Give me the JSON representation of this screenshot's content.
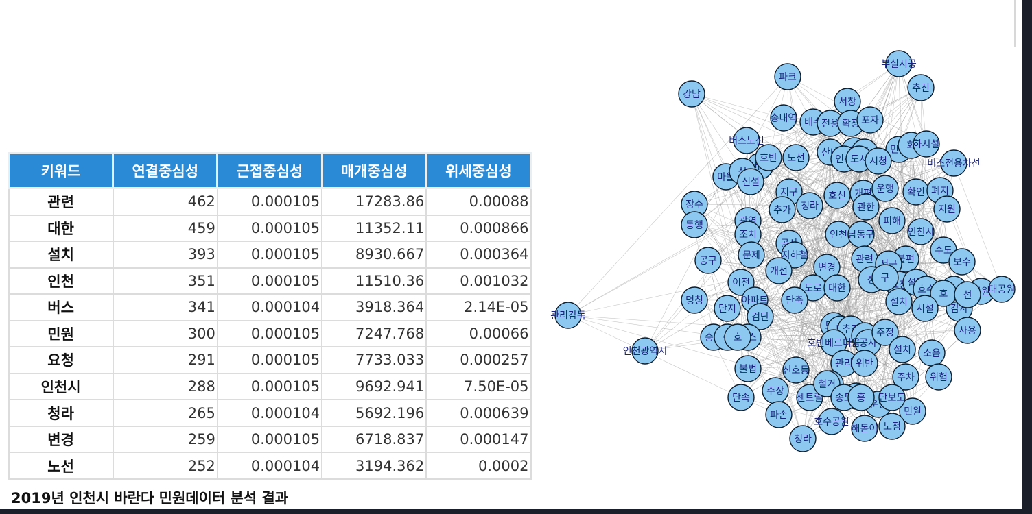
{
  "table": {
    "headers": [
      "키워드",
      "연결중심성",
      "근접중심성",
      "매개중심성",
      "위세중심성"
    ],
    "rows": [
      [
        "관련",
        "462",
        "0.000105",
        "17283.86",
        "0.00088"
      ],
      [
        "대한",
        "459",
        "0.000105",
        "11352.11",
        "0.000866"
      ],
      [
        "설치",
        "393",
        "0.000105",
        "8930.667",
        "0.000364"
      ],
      [
        "인천",
        "351",
        "0.000105",
        "11510.36",
        "0.001032"
      ],
      [
        "버스",
        "341",
        "0.000104",
        "3918.364",
        "2.14E-05"
      ],
      [
        "민원",
        "300",
        "0.000105",
        "7247.768",
        "0.00066"
      ],
      [
        "요청",
        "291",
        "0.000105",
        "7733.033",
        "0.000257"
      ],
      [
        "인천시",
        "288",
        "0.000105",
        "9692.941",
        "7.50E-05"
      ],
      [
        "청라",
        "265",
        "0.000104",
        "5692.196",
        "0.000639"
      ],
      [
        "변경",
        "259",
        "0.000105",
        "6718.837",
        "0.000147"
      ],
      [
        "노선",
        "252",
        "0.000104",
        "3194.362",
        "0.0002"
      ]
    ]
  },
  "caption": "2019년 인천시 바란다 민원데이터 분석 결과",
  "network": {
    "node_color": "#8cc8f0",
    "edge_color": "#9a9a9a",
    "labels": [
      "부실시공",
      "파크",
      "추진",
      "강남",
      "서창",
      "송내역",
      "배수",
      "전용",
      "확장",
      "포자",
      "버스노선",
      "민원",
      "화",
      "하시설",
      "산내",
      "변",
      "정",
      "노선",
      "인천",
      "도시",
      "시청",
      "마을",
      "버스",
      "호반",
      "신",
      "신설",
      "버스전용차선",
      "지구",
      "호선",
      "개편",
      "운행",
      "확인",
      "폐지",
      "장수",
      "통행",
      "추가",
      "청라",
      "관한",
      "피해",
      "지원",
      "광역",
      "조치",
      "인천",
      "남동구",
      "인천시",
      "공구",
      "문제",
      "공사",
      "지하철",
      "관련",
      "불편",
      "수도",
      "보수",
      "개선",
      "변경",
      "서구",
      "이전",
      "도로",
      "대한",
      "요청",
      "정",
      "구",
      "설정",
      "설치",
      "감사",
      "호수",
      "호소",
      "공원",
      "호",
      "선",
      "대공원",
      "명칭",
      "단지",
      "아파트",
      "단축",
      "시설",
      "관리감독",
      "검단",
      "도로",
      "버스",
      "송도",
      "승",
      "호",
      "반",
      "추진",
      "정",
      "공사",
      "주정",
      "사용",
      "인천광역시",
      "호반베르디움",
      "설치",
      "소음",
      "불법",
      "신호등",
      "관리",
      "위반",
      "주차",
      "위험",
      "단속",
      "주장",
      "가정",
      "소화전",
      "운영",
      "민원",
      "파손",
      "센트럴",
      "철거",
      "송도",
      "흥",
      "단보도",
      "청라",
      "호수공원",
      "해돋이",
      "노점"
    ]
  }
}
